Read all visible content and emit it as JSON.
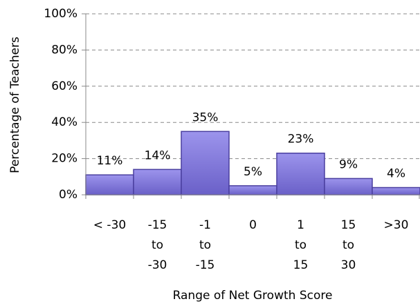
{
  "chart_data": {
    "type": "bar",
    "x_label": "Range of Net Growth Score",
    "y_label": "Percentage of Teachers",
    "categories": [
      [
        "< -30"
      ],
      [
        "-15",
        "to",
        "-30"
      ],
      [
        "-1",
        "to",
        "-15"
      ],
      [
        "0"
      ],
      [
        "1",
        "to",
        "15"
      ],
      [
        "15",
        "to",
        "30"
      ],
      [
        ">30"
      ]
    ],
    "values": [
      11,
      14,
      35,
      5,
      23,
      9,
      4
    ],
    "value_labels": [
      "11%",
      "14%",
      "35%",
      "5%",
      "23%",
      "9%",
      "4%"
    ],
    "color": "#7f76d9",
    "ylim": [
      0,
      100
    ],
    "yticks": [
      {
        "value": 0,
        "label": "0%"
      },
      {
        "value": 20,
        "label": "20%"
      },
      {
        "value": 40,
        "label": "40%"
      },
      {
        "value": 60,
        "label": "60%"
      },
      {
        "value": 80,
        "label": "80%"
      },
      {
        "value": 100,
        "label": "100%"
      }
    ],
    "grid": true
  }
}
